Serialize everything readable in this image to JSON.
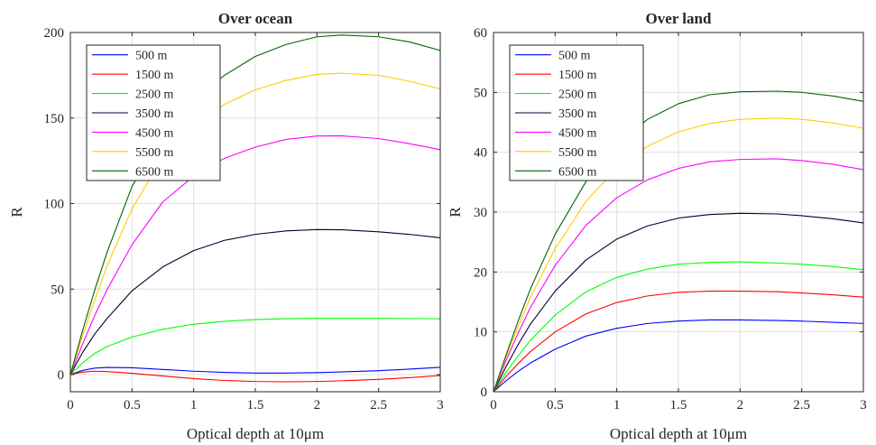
{
  "chart_data": [
    {
      "type": "line",
      "title": "Over ocean",
      "xlabel": "Optical depth at 10μm",
      "ylabel": "R",
      "xlim": [
        0,
        3
      ],
      "ylim": [
        -10,
        200
      ],
      "xticks": [
        0,
        0.5,
        1,
        1.5,
        2,
        2.5,
        3
      ],
      "xtick_labels": [
        "0",
        "0.5",
        "1",
        "1.5",
        "2",
        "2.5",
        "3"
      ],
      "yticks": [
        0,
        50,
        100,
        150,
        200
      ],
      "ytick_labels": [
        "0",
        "50",
        "100",
        "150",
        "200"
      ],
      "grid": true,
      "legend_position": "top-left",
      "x": [
        0,
        0.1,
        0.2,
        0.3,
        0.5,
        0.75,
        1,
        1.25,
        1.5,
        1.75,
        2,
        2.2,
        2.5,
        2.75,
        3
      ],
      "series": [
        {
          "name": "500 m",
          "color": "#0000ff",
          "values": [
            0,
            2.5,
            3.8,
            4.2,
            4.0,
            3.0,
            2.0,
            1.3,
            0.9,
            0.9,
            1.2,
            1.6,
            2.3,
            3.2,
            4.3
          ]
        },
        {
          "name": "1500 m",
          "color": "#ff0000",
          "values": [
            0,
            1.5,
            2.0,
            1.8,
            0.8,
            -0.8,
            -2.3,
            -3.4,
            -4.0,
            -4.2,
            -4.0,
            -3.6,
            -2.8,
            -1.8,
            -0.5
          ]
        },
        {
          "name": "2500 m",
          "color": "#00ff00",
          "values": [
            0,
            7,
            12.5,
            16.5,
            22,
            26.5,
            29.5,
            31.2,
            32.2,
            32.7,
            32.9,
            32.9,
            32.9,
            32.8,
            32.6
          ]
        },
        {
          "name": "3500 m",
          "color": "#000033",
          "values": [
            0,
            13,
            24,
            33,
            49,
            63,
            72.5,
            78.5,
            82,
            84,
            84.8,
            84.7,
            83.5,
            82,
            80
          ]
        },
        {
          "name": "4500 m",
          "color": "#ff00ff",
          "values": [
            0,
            18,
            35,
            50,
            76,
            101,
            116,
            126.5,
            133,
            137.5,
            139.5,
            139.6,
            138,
            135,
            131.5
          ]
        },
        {
          "name": "5500 m",
          "color": "#ffcc00",
          "values": [
            0,
            23,
            44,
            64,
            97,
            127,
            145,
            158,
            166.5,
            172,
            175.5,
            176.2,
            175,
            171.5,
            167
          ]
        },
        {
          "name": "6500 m",
          "color": "#006400",
          "values": [
            0,
            26,
            50,
            72,
            110,
            141,
            160,
            175,
            186,
            193,
            197.5,
            198.5,
            197.5,
            194.5,
            189.5
          ]
        }
      ]
    },
    {
      "type": "line",
      "title": "Over land",
      "xlabel": "Optical depth at 10μm",
      "ylabel": "R",
      "xlim": [
        0,
        3
      ],
      "ylim": [
        0,
        60
      ],
      "xticks": [
        0,
        0.5,
        1,
        1.5,
        2,
        2.5,
        3
      ],
      "xtick_labels": [
        "0",
        "0.5",
        "1",
        "1.5",
        "2",
        "2.5",
        "3"
      ],
      "yticks": [
        0,
        10,
        20,
        30,
        40,
        50,
        60
      ],
      "ytick_labels": [
        "0",
        "10",
        "20",
        "30",
        "40",
        "50",
        "60"
      ],
      "grid": true,
      "legend_position": "top-left",
      "x": [
        0,
        0.1,
        0.2,
        0.3,
        0.5,
        0.75,
        1,
        1.25,
        1.5,
        1.75,
        2,
        2.3,
        2.5,
        2.75,
        3
      ],
      "series": [
        {
          "name": "500 m",
          "color": "#0000ff",
          "values": [
            0,
            1.8,
            3.4,
            4.8,
            7.1,
            9.3,
            10.6,
            11.4,
            11.8,
            12.0,
            12.0,
            11.9,
            11.8,
            11.6,
            11.4
          ]
        },
        {
          "name": "1500 m",
          "color": "#ff0000",
          "values": [
            0,
            2.5,
            4.7,
            6.7,
            10.0,
            13.0,
            14.9,
            16.0,
            16.6,
            16.8,
            16.8,
            16.7,
            16.5,
            16.2,
            15.8
          ]
        },
        {
          "name": "2500 m",
          "color": "#00ff00",
          "values": [
            0,
            3.2,
            6.0,
            8.6,
            12.8,
            16.7,
            19.1,
            20.5,
            21.3,
            21.6,
            21.7,
            21.5,
            21.3,
            20.9,
            20.4
          ]
        },
        {
          "name": "3500 m",
          "color": "#000033",
          "values": [
            0,
            4.1,
            7.9,
            11.3,
            16.8,
            22.0,
            25.5,
            27.7,
            29.0,
            29.6,
            29.8,
            29.7,
            29.4,
            28.9,
            28.2
          ]
        },
        {
          "name": "4500 m",
          "color": "#ff00ff",
          "values": [
            0,
            5.1,
            9.8,
            14.1,
            21.1,
            27.8,
            32.4,
            35.4,
            37.3,
            38.4,
            38.8,
            38.9,
            38.6,
            38.0,
            37.1
          ]
        },
        {
          "name": "5500 m",
          "color": "#ffcc00",
          "values": [
            0,
            5.6,
            10.9,
            15.8,
            23.9,
            31.8,
            37.3,
            41.0,
            43.4,
            44.8,
            45.5,
            45.7,
            45.5,
            44.9,
            44.0
          ]
        },
        {
          "name": "6500 m",
          "color": "#006400",
          "values": [
            0,
            6.0,
            11.8,
            17.2,
            26.3,
            35.1,
            41.3,
            45.5,
            48.1,
            49.6,
            50.1,
            50.2,
            50.0,
            49.4,
            48.5
          ]
        }
      ]
    }
  ]
}
